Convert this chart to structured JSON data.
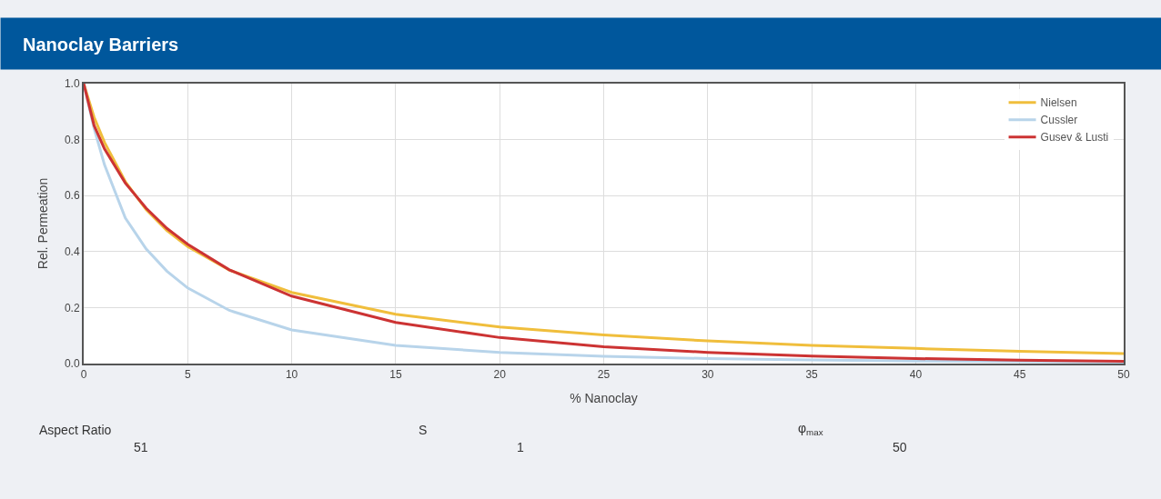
{
  "chart_data": {
    "type": "line",
    "title": "Nanoclay Barriers",
    "xlabel": "% Nanoclay",
    "ylabel": "Rel. Permeation",
    "x": [
      0,
      0.5,
      1,
      2,
      3,
      4,
      5,
      7,
      10,
      15,
      20,
      25,
      30,
      35,
      40,
      45,
      50
    ],
    "series": [
      {
        "name": "Nielsen",
        "color": "#f0be3c",
        "values": [
          1,
          0.88,
          0.79,
          0.65,
          0.55,
          0.475,
          0.418,
          0.334,
          0.254,
          0.176,
          0.131,
          0.102,
          0.081,
          0.065,
          0.054,
          0.044,
          0.036
        ]
      },
      {
        "name": "Cussler",
        "color": "#b8d4ea",
        "values": [
          1,
          0.84,
          0.71,
          0.52,
          0.41,
          0.33,
          0.27,
          0.19,
          0.12,
          0.065,
          0.04,
          0.026,
          0.018,
          0.013,
          0.009,
          0.007,
          0.005
        ]
      },
      {
        "name": "Gusev & Lusti",
        "color": "#cc3333",
        "values": [
          1,
          0.85,
          0.767,
          0.645,
          0.555,
          0.483,
          0.426,
          0.335,
          0.241,
          0.147,
          0.093,
          0.06,
          0.04,
          0.027,
          0.018,
          0.012,
          0.008
        ]
      }
    ],
    "xlim": [
      0,
      50
    ],
    "xticks": [
      0,
      5,
      10,
      15,
      20,
      25,
      30,
      35,
      40,
      45,
      50
    ],
    "ylim": [
      0,
      1
    ],
    "yticks": [
      {
        "value": 0,
        "label": "0.0"
      },
      0.2,
      0.4,
      0.6,
      0.8,
      {
        "value": 1,
        "label": "1.0"
      }
    ],
    "grid": true,
    "legend": "top right",
    "marker": "none",
    "line_style": "solid",
    "annotations": [
      "Aspect Ratio",
      "51",
      "S",
      "1",
      "φ$_{max}$",
      "50"
    ]
  }
}
